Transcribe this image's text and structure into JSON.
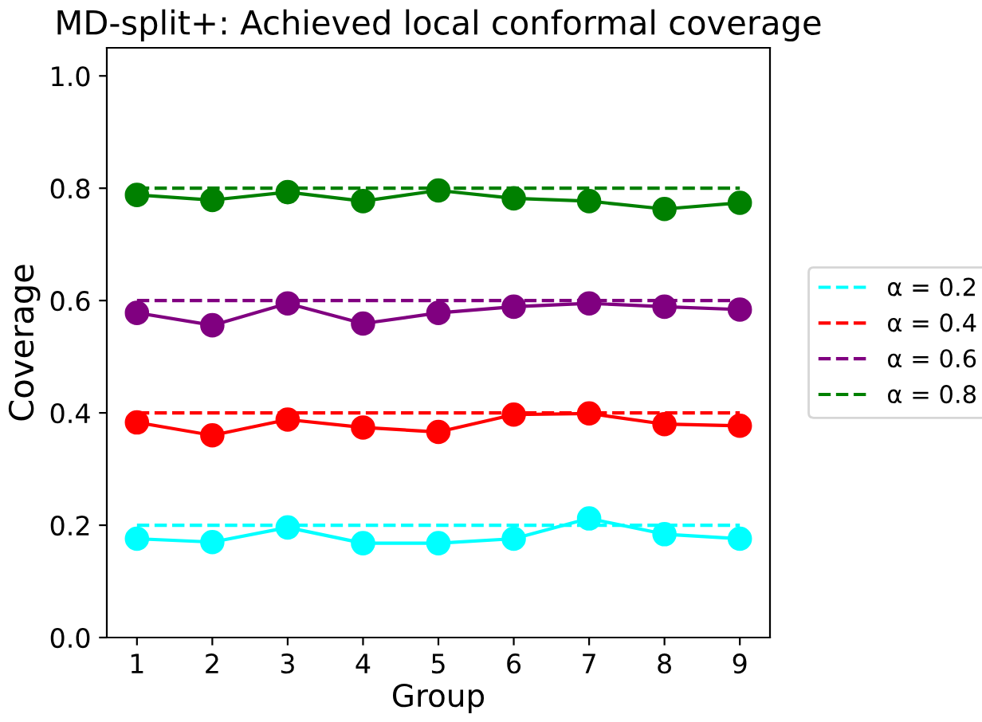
{
  "chart_data": {
    "type": "line",
    "title": "MD-split+: Achieved local conformal coverage",
    "xlabel": "Group",
    "ylabel": "Coverage",
    "x": [
      1,
      2,
      3,
      4,
      5,
      6,
      7,
      8,
      9
    ],
    "series": [
      {
        "name": "α = 0.2",
        "color": "#00ffff",
        "values": [
          0.2,
          0.2,
          0.2,
          0.2,
          0.2,
          0.2,
          0.2,
          0.2,
          0.2
        ],
        "line_style": "dashed",
        "marker": "none"
      },
      {
        "name": "α = 0.4",
        "color": "#ff0000",
        "values": [
          0.4,
          0.4,
          0.4,
          0.4,
          0.4,
          0.4,
          0.4,
          0.4,
          0.4
        ],
        "line_style": "dashed",
        "marker": "none"
      },
      {
        "name": "α = 0.6",
        "color": "#800080",
        "values": [
          0.6,
          0.6,
          0.6,
          0.6,
          0.6,
          0.6,
          0.6,
          0.6,
          0.6
        ],
        "line_style": "dashed",
        "marker": "none"
      },
      {
        "name": "α = 0.8",
        "color": "#008000",
        "values": [
          0.8,
          0.8,
          0.8,
          0.8,
          0.8,
          0.8,
          0.8,
          0.8,
          0.8
        ],
        "line_style": "dashed",
        "marker": "none"
      },
      {
        "color": "#00ffff",
        "values": [
          0.176,
          0.17,
          0.196,
          0.168,
          0.168,
          0.176,
          0.212,
          0.184,
          0.176
        ],
        "line_style": "solid",
        "marker": "circle"
      },
      {
        "color": "#ff0000",
        "values": [
          0.383,
          0.36,
          0.388,
          0.374,
          0.366,
          0.397,
          0.399,
          0.38,
          0.377
        ],
        "line_style": "solid",
        "marker": "circle"
      },
      {
        "color": "#800080",
        "values": [
          0.578,
          0.556,
          0.595,
          0.559,
          0.578,
          0.589,
          0.595,
          0.589,
          0.584
        ],
        "line_style": "solid",
        "marker": "circle"
      },
      {
        "color": "#008000",
        "values": [
          0.788,
          0.779,
          0.793,
          0.777,
          0.796,
          0.782,
          0.777,
          0.763,
          0.774
        ],
        "line_style": "solid",
        "marker": "circle"
      }
    ],
    "xlim": [
      0.6,
      9.4
    ],
    "xticks": [
      1,
      2,
      3,
      4,
      5,
      6,
      7,
      8,
      9
    ],
    "ylim": [
      0,
      1.05
    ],
    "yticks": [
      {
        "value": 0,
        "label": "0.0"
      },
      0.2,
      0.4,
      0.6,
      0.8,
      {
        "value": 1,
        "label": "1.0"
      }
    ],
    "grid": false,
    "legend": "right"
  }
}
